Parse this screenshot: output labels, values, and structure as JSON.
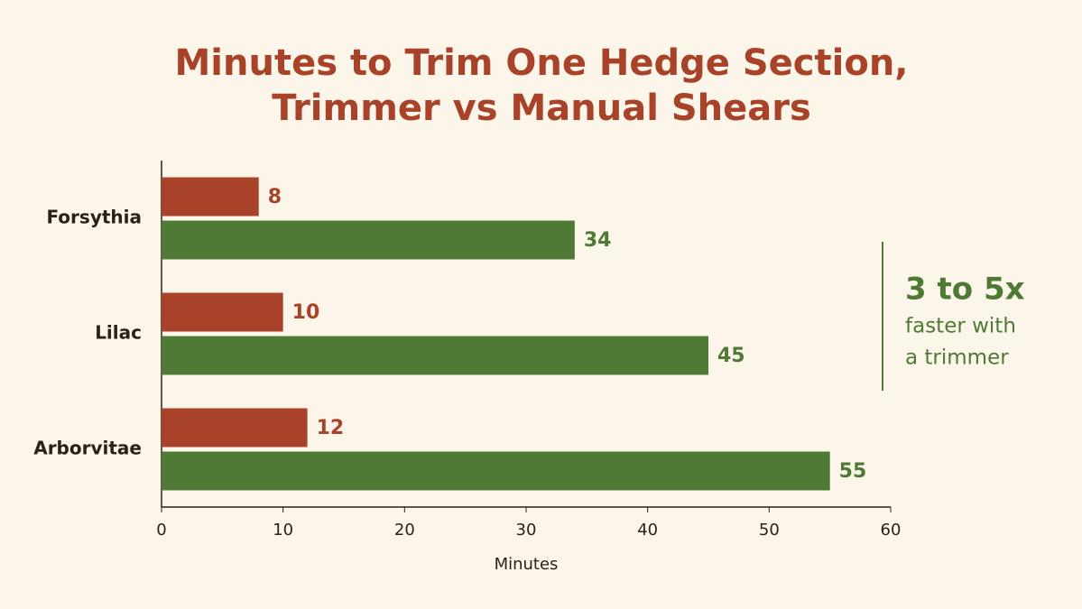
{
  "chart_data": {
    "type": "bar",
    "orientation": "horizontal",
    "title": [
      "Minutes to Trim One Hedge Section,",
      "Trimmer vs Manual Shears"
    ],
    "categories": [
      "Forsythia",
      "Lilac",
      "Arborvitae"
    ],
    "series": [
      {
        "color": "#a8432a",
        "values": [
          8,
          10,
          12
        ]
      },
      {
        "color": "#4f7a35",
        "values": [
          34,
          45,
          55
        ]
      }
    ],
    "xlim": [
      0,
      60
    ],
    "xticks": [
      0,
      10,
      20,
      30,
      40,
      50,
      60
    ],
    "x_label": "Minutes",
    "annotation": [
      "3 to 5x",
      "faster with",
      "a trimmer"
    ]
  }
}
